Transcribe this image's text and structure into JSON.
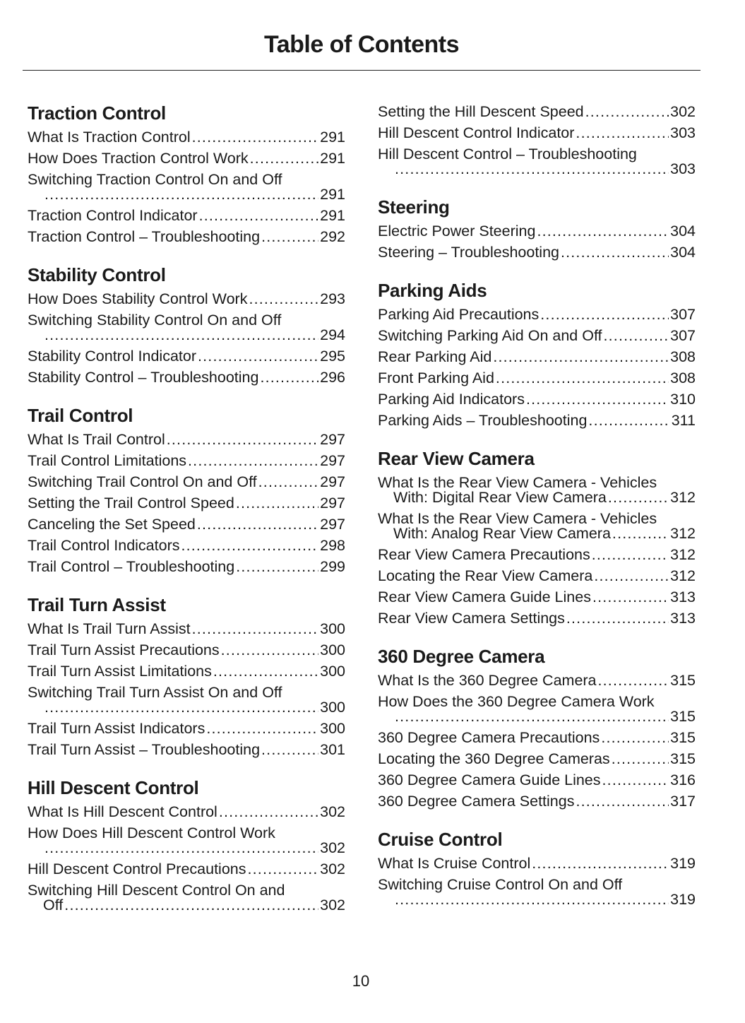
{
  "title": "Table of Contents",
  "page_number": "10",
  "columns": [
    [
      {
        "heading": "Traction Control",
        "entries": [
          {
            "text": "What Is Traction Control",
            "page": "291"
          },
          {
            "text": "How Does Traction Control Work",
            "page": "291"
          },
          {
            "text": "Switching Traction Control On and Off",
            "cont": "",
            "page": "291",
            "wrap": true
          },
          {
            "text": "Traction Control Indicator",
            "page": "291"
          },
          {
            "text": "Traction Control – Troubleshooting",
            "page": "292"
          }
        ]
      },
      {
        "heading": "Stability Control",
        "entries": [
          {
            "text": "How Does Stability Control Work",
            "page": "293"
          },
          {
            "text": "Switching Stability Control On and Off",
            "cont": "",
            "page": "294",
            "wrap": true
          },
          {
            "text": "Stability Control Indicator",
            "page": "295"
          },
          {
            "text": "Stability Control – Troubleshooting",
            "page": "296"
          }
        ]
      },
      {
        "heading": "Trail Control",
        "entries": [
          {
            "text": "What Is Trail Control",
            "page": "297"
          },
          {
            "text": "Trail Control Limitations",
            "page": "297"
          },
          {
            "text": "Switching Trail Control On and Off",
            "page": "297"
          },
          {
            "text": "Setting the Trail Control Speed",
            "page": "297"
          },
          {
            "text": "Canceling the Set Speed",
            "page": "297"
          },
          {
            "text": "Trail Control Indicators",
            "page": "298"
          },
          {
            "text": "Trail Control – Troubleshooting",
            "page": "299"
          }
        ]
      },
      {
        "heading": "Trail Turn Assist",
        "entries": [
          {
            "text": "What Is Trail Turn Assist",
            "page": "300"
          },
          {
            "text": "Trail Turn Assist Precautions",
            "page": "300"
          },
          {
            "text": "Trail Turn Assist Limitations",
            "page": "300"
          },
          {
            "text": "Switching Trail Turn Assist On and Off",
            "cont": "",
            "page": "300",
            "wrap": true
          },
          {
            "text": "Trail Turn Assist Indicators",
            "page": "300"
          },
          {
            "text": "Trail Turn Assist – Troubleshooting",
            "page": "301"
          }
        ]
      },
      {
        "heading": "Hill Descent Control",
        "entries": [
          {
            "text": "What Is Hill Descent Control",
            "page": "302"
          },
          {
            "text": "How Does Hill Descent Control Work",
            "cont": "",
            "page": "302",
            "wrap": true
          },
          {
            "text": "Hill Descent Control Precautions",
            "page": "302"
          },
          {
            "text": "Switching Hill Descent Control On and",
            "cont": "Off",
            "page": "302",
            "wrap": true
          }
        ]
      }
    ],
    [
      {
        "heading": "",
        "entries": [
          {
            "text": "Setting the Hill Descent Speed",
            "page": "302"
          },
          {
            "text": "Hill Descent Control Indicator",
            "page": "303"
          },
          {
            "text": "Hill Descent Control – Troubleshooting",
            "cont": "",
            "page": "303",
            "wrap": true
          }
        ]
      },
      {
        "heading": "Steering",
        "entries": [
          {
            "text": "Electric Power Steering",
            "page": "304"
          },
          {
            "text": "Steering – Troubleshooting",
            "page": "304"
          }
        ]
      },
      {
        "heading": "Parking Aids",
        "entries": [
          {
            "text": "Parking Aid Precautions",
            "page": "307"
          },
          {
            "text": "Switching Parking Aid On and Off",
            "page": "307"
          },
          {
            "text": "Rear Parking Aid",
            "page": "308"
          },
          {
            "text": "Front Parking Aid",
            "page": "308"
          },
          {
            "text": "Parking Aid Indicators",
            "page": "310"
          },
          {
            "text": "Parking Aids – Troubleshooting",
            "page": "311"
          }
        ]
      },
      {
        "heading": "Rear View Camera",
        "entries": [
          {
            "text": "What Is the Rear View Camera - Vehicles",
            "cont": "With: Digital Rear View Camera",
            "page": "312",
            "wrap": true
          },
          {
            "text": "What Is the Rear View Camera - Vehicles",
            "cont": "With: Analog Rear View Camera",
            "page": "312",
            "wrap": true
          },
          {
            "text": "Rear View Camera Precautions",
            "page": "312"
          },
          {
            "text": "Locating the Rear View Camera",
            "page": "312"
          },
          {
            "text": "Rear View Camera Guide Lines",
            "page": "313"
          },
          {
            "text": "Rear View Camera Settings",
            "page": "313"
          }
        ]
      },
      {
        "heading": "360 Degree Camera",
        "entries": [
          {
            "text": "What Is the 360 Degree Camera",
            "page": "315"
          },
          {
            "text": "How Does the 360 Degree Camera Work",
            "cont": "",
            "page": "315",
            "wrap": true
          },
          {
            "text": "360 Degree Camera Precautions",
            "page": "315"
          },
          {
            "text": "Locating the 360 Degree Cameras",
            "page": "315"
          },
          {
            "text": "360 Degree Camera Guide Lines",
            "page": "316"
          },
          {
            "text": "360 Degree Camera Settings",
            "page": "317"
          }
        ]
      },
      {
        "heading": "Cruise Control",
        "entries": [
          {
            "text": "What Is Cruise Control",
            "page": "319"
          },
          {
            "text": "Switching Cruise Control On and Off",
            "cont": "",
            "page": "319",
            "wrap": true
          }
        ]
      }
    ]
  ]
}
